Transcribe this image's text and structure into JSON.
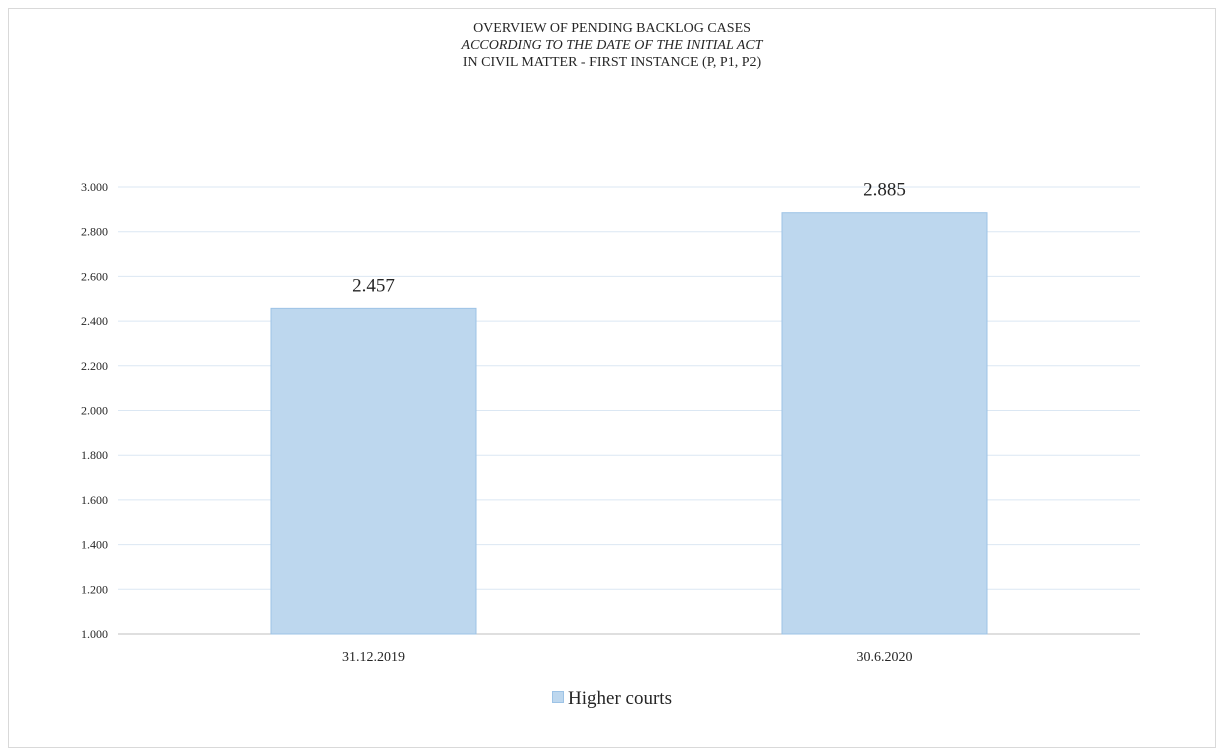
{
  "chart_data": {
    "type": "bar",
    "title_lines": [
      "OVERVIEW  OF PENDING BACKLOG CASES",
      "ACCORDING TO THE DATE OF THE INITIAL ACT",
      "IN CIVIL MATTER  - FIRST INSTANCE (P, P1, P2)"
    ],
    "categories": [
      "31.12.2019",
      "30.6.2020"
    ],
    "series": [
      {
        "name": "Higher courts",
        "values": [
          2457,
          2885
        ],
        "labels": [
          "2.457",
          "2.885"
        ]
      }
    ],
    "ylim": [
      1000,
      3000
    ],
    "yticks": [
      1000,
      1200,
      1400,
      1600,
      1800,
      2000,
      2200,
      2400,
      2600,
      2800,
      3000
    ],
    "ytick_labels": [
      "1.000",
      "1.200",
      "1.400",
      "1.600",
      "1.800",
      "2.000",
      "2.200",
      "2.400",
      "2.600",
      "2.800",
      "3.000"
    ],
    "grid": true,
    "legend_position": "bottom",
    "colors": {
      "bar_fill": "#bdd7ee",
      "bar_stroke": "#9dc3e6",
      "grid": "#dbe7f3"
    }
  }
}
